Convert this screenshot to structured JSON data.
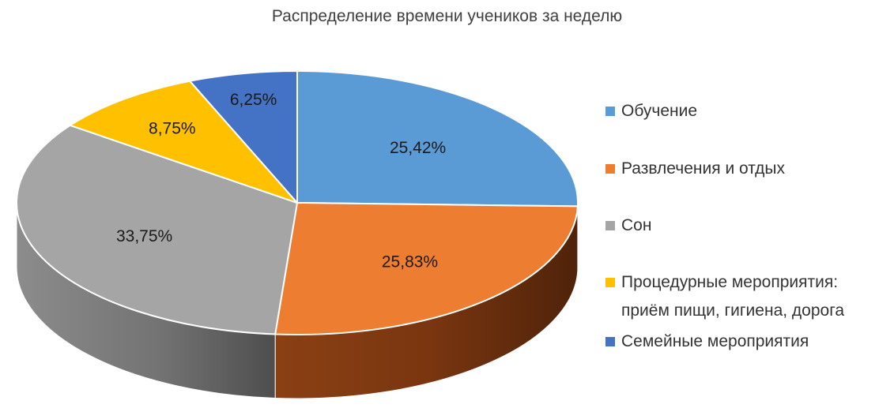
{
  "chart_data": {
    "type": "pie",
    "title": "Распределение времени учеников за неделю",
    "categories": [
      "Обучение",
      "Развлечения и отдых",
      "Сон",
      "Процедурные мероприятия: приём пищи, гигиена, дорога",
      "Семейные мероприятия"
    ],
    "values": [
      25.42,
      25.83,
      33.75,
      8.75,
      6.25
    ],
    "data_labels": [
      "25,42%",
      "25,83%",
      "33,75%",
      "8,75%",
      "6,25%"
    ],
    "colors": [
      "#5B9BD5",
      "#ED7D31",
      "#A5A5A5",
      "#FFC000",
      "#4472C4"
    ],
    "legend_position": "right",
    "style": "3d"
  },
  "legend": {
    "items": [
      {
        "label": "Обучение",
        "color": "#5B9BD5"
      },
      {
        "label": "Развлечения и отдых",
        "color": "#ED7D31"
      },
      {
        "label": "Сон",
        "color": "#A5A5A5"
      },
      {
        "label": "Процедурные мероприятия:\nприём пищи, гигиена, дорога",
        "color": "#FFC000"
      },
      {
        "label": "Семейные мероприятия",
        "color": "#4472C4"
      }
    ]
  }
}
